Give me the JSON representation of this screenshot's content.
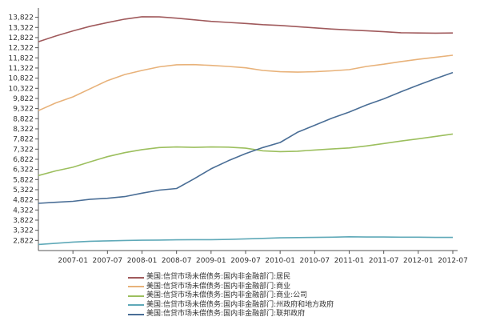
{
  "chart_data": {
    "type": "line",
    "title": "",
    "xlabel": "",
    "ylabel": "",
    "x_ticks": [
      "2007-01",
      "2007-07",
      "2008-01",
      "2008-07",
      "2009-01",
      "2009-07",
      "2010-01",
      "2010-07",
      "2011-01",
      "2011-07",
      "2012-01",
      "2012-07"
    ],
    "y_ticks": [
      2822,
      3322,
      3822,
      4322,
      4822,
      5322,
      5822,
      6322,
      6822,
      7322,
      7822,
      8322,
      8822,
      9322,
      9822,
      10322,
      10822,
      11322,
      11822,
      12322,
      12822,
      13322,
      13822
    ],
    "y_tick_labels": [
      "2,822",
      "3,322",
      "3,822",
      "4,322",
      "4,822",
      "5,322",
      "5,822",
      "6,322",
      "6,822",
      "7,322",
      "7,822",
      "8,322",
      "8,822",
      "9,322",
      "9,822",
      "10,322",
      "10,822",
      "11,322",
      "11,822",
      "12,322",
      "12,822",
      "13,322",
      "13,822"
    ],
    "ylim": [
      2322,
      14122
    ],
    "xlim": [
      "2006-07",
      "2012-07"
    ],
    "grid": false,
    "legend_position": "bottom",
    "x": [
      "2006-07",
      "2006-10",
      "2007-01",
      "2007-04",
      "2007-07",
      "2007-10",
      "2008-01",
      "2008-04",
      "2008-07",
      "2008-10",
      "2009-01",
      "2009-04",
      "2009-07",
      "2009-10",
      "2010-01",
      "2010-04",
      "2010-07",
      "2010-10",
      "2011-01",
      "2011-04",
      "2011-07",
      "2011-10",
      "2012-01",
      "2012-04",
      "2012-07"
    ],
    "series": [
      {
        "name": "美国:信贷市场未偿债务:国内非金融部门:居民",
        "color": "#a05a5c",
        "values": [
          12620,
          12900,
          13150,
          13380,
          13560,
          13730,
          13850,
          13840,
          13780,
          13700,
          13620,
          13570,
          13520,
          13460,
          13420,
          13360,
          13300,
          13240,
          13200,
          13160,
          13110,
          13060,
          13050,
          13040,
          13050
        ]
      },
      {
        "name": "美国:信贷市场未偿债务:国内非金融部门:商业",
        "color": "#e8b27a",
        "values": [
          9220,
          9600,
          9900,
          10300,
          10700,
          11000,
          11200,
          11380,
          11480,
          11490,
          11450,
          11400,
          11330,
          11200,
          11140,
          11120,
          11140,
          11180,
          11240,
          11400,
          11510,
          11640,
          11750,
          11850,
          11950
        ]
      },
      {
        "name": "美国:信贷市场未偿债务:国内非金融部门:商业:公司",
        "color": "#9cbf5e",
        "values": [
          6020,
          6250,
          6430,
          6700,
          6950,
          7150,
          7300,
          7400,
          7430,
          7410,
          7430,
          7420,
          7370,
          7240,
          7200,
          7220,
          7280,
          7330,
          7380,
          7480,
          7600,
          7720,
          7830,
          7950,
          8070
        ]
      },
      {
        "name": "美国:信贷市场未偿债务:国内非金融部门:州政府和地方政府",
        "color": "#5fa9b8",
        "values": [
          2620,
          2680,
          2740,
          2780,
          2800,
          2820,
          2830,
          2840,
          2850,
          2860,
          2860,
          2870,
          2900,
          2920,
          2950,
          2960,
          2970,
          2980,
          3000,
          2990,
          2990,
          2980,
          2980,
          2970,
          2970
        ]
      },
      {
        "name": "美国:信贷市场未偿债务:国内非金融部门:联邦政府",
        "color": "#4a6e96",
        "values": [
          4650,
          4700,
          4750,
          4850,
          4900,
          4980,
          5150,
          5300,
          5380,
          5850,
          6350,
          6750,
          7100,
          7400,
          7650,
          8150,
          8500,
          8850,
          9150,
          9500,
          9800,
          10150,
          10480,
          10800,
          11100
        ]
      }
    ]
  }
}
